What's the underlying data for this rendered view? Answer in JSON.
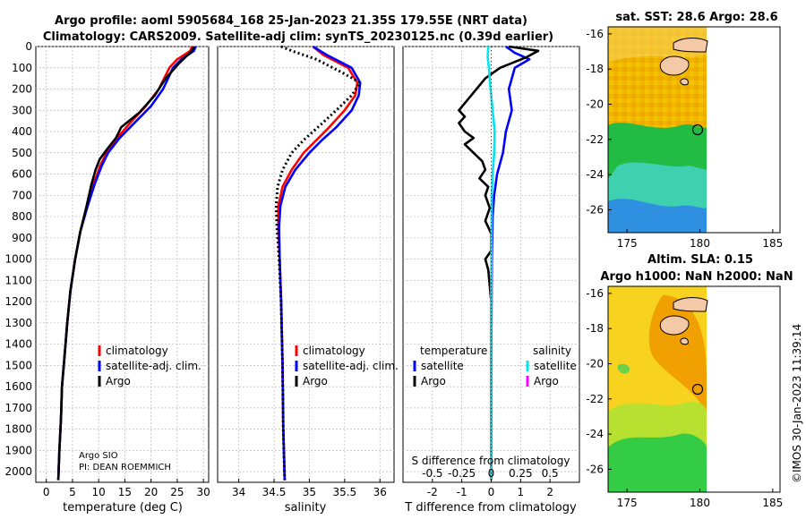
{
  "title": {
    "line1": "Argo profile: aoml 5905684_168 25-Jan-2023 21.35S 179.55E (NRT data)",
    "line2": "Climatology: CARS2009. Satellite-adj clim: synTS_20230125.nc (0.39d earlier)"
  },
  "colors": {
    "climatology": "#ff0000",
    "satellite": "#0000ff",
    "argo": "#000000",
    "sat_salinity": "#00e5ee",
    "argo_salinity": "#ff00ff",
    "land": "#f4c9a8",
    "grid": "#b8b8b8"
  },
  "footer": {
    "stamp": "©IMOS 30-Jan-2023 11:39:14"
  },
  "chart_data": [
    {
      "type": "line",
      "name": "temperature-panel",
      "xlabel": "temperature (deg C)",
      "ylabel": "",
      "xlim": [
        -2,
        31
      ],
      "ylim": [
        2050,
        0
      ],
      "xticks": [
        0,
        5,
        10,
        15,
        20,
        25,
        30
      ],
      "yticks": [
        0,
        100,
        200,
        300,
        400,
        500,
        600,
        700,
        800,
        900,
        1000,
        1100,
        1200,
        1300,
        1400,
        1500,
        1600,
        1700,
        1800,
        1900,
        2000
      ],
      "legend": [
        "climatology",
        "satellite-adj. clim.",
        "Argo"
      ],
      "annotation": [
        "Argo SIO",
        "PI: DEAN ROEMMICH"
      ],
      "series": [
        {
          "name": "climatology",
          "style": "red",
          "points": [
            [
              27.8,
              0
            ],
            [
              27.5,
              20
            ],
            [
              25,
              60
            ],
            [
              23.5,
              100
            ],
            [
              21.5,
              200
            ],
            [
              19,
              280
            ],
            [
              16,
              360
            ],
            [
              13.5,
              430
            ],
            [
              11.5,
              500
            ],
            [
              10.3,
              560
            ],
            [
              9,
              650
            ],
            [
              7.8,
              750
            ],
            [
              6.5,
              870
            ],
            [
              5.5,
              1000
            ],
            [
              4.6,
              1150
            ],
            [
              4,
              1300
            ],
            [
              3.5,
              1450
            ],
            [
              3,
              1600
            ],
            [
              2.8,
              1750
            ],
            [
              2.5,
              1900
            ],
            [
              2.3,
              2040
            ]
          ]
        },
        {
          "name": "satellite-adj. clim.",
          "style": "blue",
          "points": [
            [
              28.5,
              0
            ],
            [
              28.2,
              20
            ],
            [
              25.8,
              60
            ],
            [
              24.2,
              100
            ],
            [
              22.3,
              200
            ],
            [
              20,
              280
            ],
            [
              16.8,
              360
            ],
            [
              14,
              430
            ],
            [
              11.8,
              500
            ],
            [
              10.6,
              560
            ],
            [
              9.2,
              650
            ],
            [
              7.9,
              750
            ],
            [
              6.5,
              870
            ],
            [
              5.5,
              1000
            ],
            [
              4.6,
              1150
            ],
            [
              4,
              1300
            ],
            [
              3.5,
              1450
            ],
            [
              3,
              1600
            ],
            [
              2.8,
              1750
            ],
            [
              2.5,
              1900
            ],
            [
              2.3,
              2040
            ]
          ]
        },
        {
          "name": "Argo",
          "style": "black",
          "points": [
            [
              28.2,
              0
            ],
            [
              27.8,
              20
            ],
            [
              25.3,
              80
            ],
            [
              22.8,
              150
            ],
            [
              20.7,
              230
            ],
            [
              17.8,
              310
            ],
            [
              14.3,
              380
            ],
            [
              13.3,
              430
            ],
            [
              11.7,
              480
            ],
            [
              10.2,
              530
            ],
            [
              9.4,
              580
            ],
            [
              8.6,
              650
            ],
            [
              7.7,
              750
            ],
            [
              6.5,
              870
            ],
            [
              5.5,
              1000
            ],
            [
              4.6,
              1150
            ],
            [
              4,
              1300
            ],
            [
              3.5,
              1450
            ],
            [
              3,
              1600
            ],
            [
              2.8,
              1750
            ],
            [
              2.5,
              1900
            ],
            [
              2.3,
              2040
            ]
          ]
        }
      ]
    },
    {
      "type": "line",
      "name": "salinity-panel",
      "xlabel": "salinity",
      "xlim": [
        33.7,
        36.2
      ],
      "ylim": [
        2050,
        0
      ],
      "xticks": [
        34,
        34.5,
        35,
        35.5,
        36
      ],
      "legend": [
        "climatology",
        "satellite-adj. clim.",
        "Argo"
      ],
      "series": [
        {
          "name": "climatology",
          "style": "red",
          "points": [
            [
              35.05,
              0
            ],
            [
              35.2,
              40
            ],
            [
              35.55,
              100
            ],
            [
              35.68,
              170
            ],
            [
              35.65,
              230
            ],
            [
              35.5,
              300
            ],
            [
              35.28,
              380
            ],
            [
              35.1,
              440
            ],
            [
              34.92,
              500
            ],
            [
              34.75,
              580
            ],
            [
              34.62,
              660
            ],
            [
              34.56,
              750
            ],
            [
              34.56,
              850
            ],
            [
              34.58,
              1000
            ],
            [
              34.6,
              1200
            ],
            [
              34.62,
              1500
            ],
            [
              34.63,
              1800
            ],
            [
              34.65,
              2040
            ]
          ]
        },
        {
          "name": "satellite-adj. clim.",
          "style": "blue",
          "points": [
            [
              35.05,
              0
            ],
            [
              35.25,
              40
            ],
            [
              35.6,
              100
            ],
            [
              35.72,
              170
            ],
            [
              35.7,
              230
            ],
            [
              35.6,
              300
            ],
            [
              35.38,
              380
            ],
            [
              35.18,
              440
            ],
            [
              35,
              500
            ],
            [
              34.8,
              580
            ],
            [
              34.66,
              660
            ],
            [
              34.59,
              750
            ],
            [
              34.57,
              850
            ],
            [
              34.58,
              1000
            ],
            [
              34.6,
              1200
            ],
            [
              34.62,
              1500
            ],
            [
              34.63,
              1800
            ],
            [
              34.65,
              2040
            ]
          ]
        },
        {
          "name": "Argo",
          "style": "black-dotted",
          "points": [
            [
              34.6,
              0
            ],
            [
              34.75,
              20
            ],
            [
              35.1,
              60
            ],
            [
              35.45,
              120
            ],
            [
              35.72,
              170
            ],
            [
              35.6,
              230
            ],
            [
              35.38,
              300
            ],
            [
              35.12,
              380
            ],
            [
              34.92,
              440
            ],
            [
              34.75,
              500
            ],
            [
              34.62,
              580
            ],
            [
              34.55,
              660
            ],
            [
              34.53,
              750
            ],
            [
              34.54,
              850
            ],
            [
              34.57,
              1000
            ],
            [
              34.6,
              1200
            ],
            [
              34.62,
              1500
            ],
            [
              34.63,
              1800
            ],
            [
              34.65,
              2040
            ]
          ]
        }
      ]
    },
    {
      "type": "line",
      "name": "difference-panel",
      "xlabel": "T difference from climatology",
      "xlabel2": "S difference from climatology",
      "xlim": [
        -3,
        3
      ],
      "ylim": [
        2050,
        0
      ],
      "xticks": [
        -2,
        -1,
        0,
        1,
        2
      ],
      "xticks2": [
        "-0.5",
        "-0.25",
        "0",
        "0.25",
        "0.5"
      ],
      "legend_temperature_title": "temperature",
      "legend_salinity_title": "salinity",
      "legend_temperature": [
        "satellite",
        "Argo"
      ],
      "legend_salinity": [
        "satellite",
        "Argo"
      ],
      "series": [
        {
          "name": "T satellite",
          "style": "blue",
          "points": [
            [
              0.5,
              0
            ],
            [
              0.8,
              30
            ],
            [
              1.3,
              60
            ],
            [
              0.8,
              100
            ],
            [
              0.6,
              200
            ],
            [
              0.7,
              300
            ],
            [
              0.5,
              400
            ],
            [
              0.4,
              500
            ],
            [
              0.2,
              600
            ],
            [
              0.1,
              700
            ],
            [
              0.05,
              800
            ],
            [
              0.02,
              1000
            ],
            [
              0,
              1500
            ],
            [
              0,
              2040
            ]
          ]
        },
        {
          "name": "T Argo",
          "style": "black",
          "points": [
            [
              0.6,
              0
            ],
            [
              1.6,
              20
            ],
            [
              1.2,
              50
            ],
            [
              0.3,
              100
            ],
            [
              -0.2,
              150
            ],
            [
              -0.5,
              200
            ],
            [
              -0.8,
              250
            ],
            [
              -1.1,
              300
            ],
            [
              -0.9,
              330
            ],
            [
              -1.1,
              360
            ],
            [
              -0.9,
              400
            ],
            [
              -0.6,
              430
            ],
            [
              -0.9,
              460
            ],
            [
              -0.6,
              500
            ],
            [
              -0.3,
              540
            ],
            [
              -0.2,
              580
            ],
            [
              -0.4,
              620
            ],
            [
              -0.1,
              660
            ],
            [
              -0.2,
              700
            ],
            [
              -0.05,
              760
            ],
            [
              -0.2,
              820
            ],
            [
              0,
              880
            ],
            [
              0,
              960
            ],
            [
              -0.2,
              1000
            ],
            [
              -0.1,
              1050
            ],
            [
              0,
              1200
            ],
            [
              0,
              1500
            ],
            [
              0,
              2040
            ]
          ]
        },
        {
          "name": "S satellite",
          "style": "cyan",
          "points": [
            [
              -0.1,
              0
            ],
            [
              -0.12,
              50
            ],
            [
              -0.08,
              100
            ],
            [
              -0.02,
              200
            ],
            [
              0.05,
              300
            ],
            [
              0.12,
              400
            ],
            [
              0.1,
              500
            ],
            [
              0.05,
              600
            ],
            [
              0.02,
              700
            ],
            [
              0.01,
              900
            ],
            [
              0,
              1200
            ],
            [
              0,
              2040
            ]
          ]
        }
      ]
    },
    {
      "type": "heatmap",
      "name": "sst-map",
      "title": "sat. SST: 28.6  Argo: 28.6",
      "xticks": [
        175,
        180,
        185
      ],
      "yticks": [
        -16,
        -18,
        -20,
        -22,
        -24,
        -26
      ],
      "xlim": [
        173.7,
        185.5
      ],
      "ylim": [
        -27.3,
        -15.6
      ],
      "argo_position": [
        179.55,
        -21.35
      ]
    },
    {
      "type": "heatmap",
      "name": "sla-map",
      "title1": "Altim. SLA: 0.15",
      "title2": "Argo h1000: NaN h2000: NaN",
      "xticks": [
        175,
        180,
        185
      ],
      "yticks": [
        -16,
        -18,
        -20,
        -22,
        -24,
        -26
      ],
      "xlim": [
        173.7,
        185.5
      ],
      "ylim": [
        -27.3,
        -15.6
      ],
      "argo_position": [
        179.55,
        -21.35
      ]
    }
  ]
}
